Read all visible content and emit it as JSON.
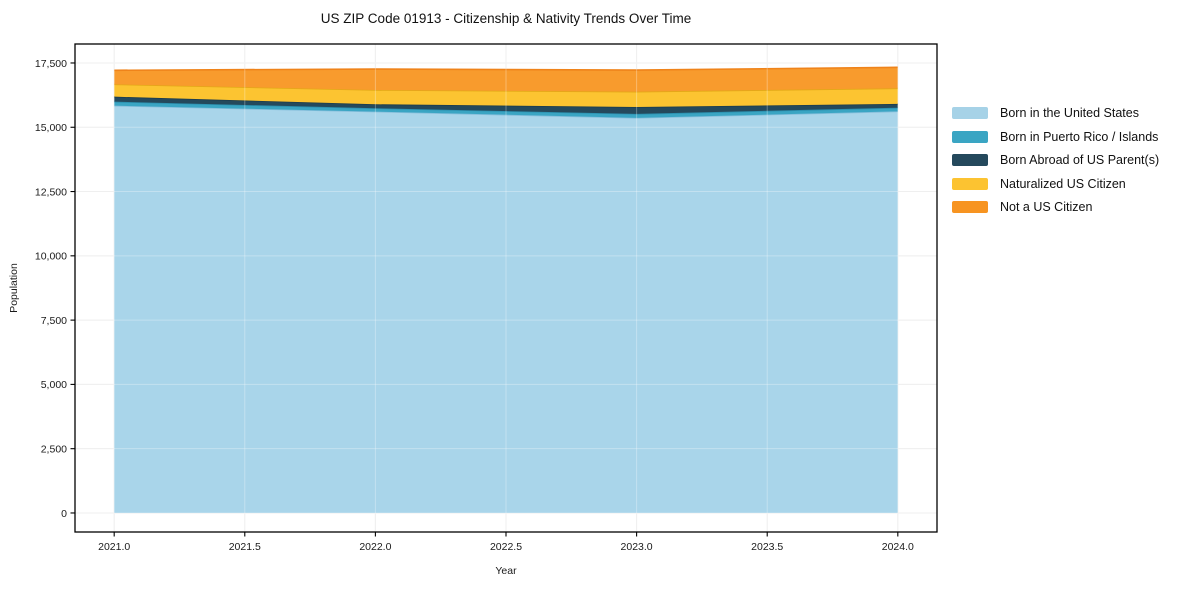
{
  "chart_data": {
    "type": "area",
    "stacked": true,
    "title": "US ZIP Code 01913 - Citizenship & Nativity Trends Over Time",
    "xlabel": "Year",
    "ylabel": "Population",
    "x": [
      2021,
      2022,
      2023,
      2024
    ],
    "series": [
      {
        "name": "Born in the United States",
        "values": [
          15840,
          15610,
          15365,
          15620
        ],
        "color": "#a6d2e7",
        "fill": "#a9d5ea",
        "edge": "#85bedb"
      },
      {
        "name": "Born in Puerto Rico / Islands",
        "values": [
          155,
          130,
          155,
          140
        ],
        "color": "#3aa5c3",
        "fill": "#3aa5c3",
        "edge": "#2b8fae"
      },
      {
        "name": "Born Abroad of US Parent(s)",
        "values": [
          195,
          155,
          270,
          150
        ],
        "color": "#24495c",
        "fill": "#24495c",
        "edge": "#1c3c4d"
      },
      {
        "name": "Naturalized US Citizen",
        "values": [
          480,
          555,
          595,
          605
        ],
        "color": "#fcc331",
        "fill": "#fcc431",
        "edge": "#e3a817"
      },
      {
        "name": "Not a US Citizen",
        "values": [
          545,
          815,
          840,
          815
        ],
        "color": "#f79421",
        "fill": "#f89b2d",
        "edge": "#ef831a"
      }
    ],
    "xlim": [
      2020.85,
      2024.15
    ],
    "ylim": [
      -740,
      18238
    ],
    "xticks": {
      "values": [
        2021,
        2021.5,
        2022,
        2022.5,
        2023,
        2023.5,
        2024
      ],
      "labels": [
        "2021.0",
        "2021.5",
        "2022.0",
        "2022.5",
        "2023.0",
        "2023.5",
        "2024.0"
      ]
    },
    "yticks": {
      "values": [
        0,
        2500,
        5000,
        7500,
        10000,
        12500,
        15000,
        17500
      ],
      "labels": [
        "0",
        "2,500",
        "5,000",
        "7,500",
        "10,000",
        "12,500",
        "15,000",
        "17,500"
      ]
    },
    "grid": true,
    "legend_position": "right-outside",
    "colors": {
      "grid": "#e9e9e9",
      "grid_over_areas": "rgba(255,255,255,0.3)",
      "spine": "#000000",
      "text": "#1a1a1a",
      "background": "#ffffff"
    }
  }
}
